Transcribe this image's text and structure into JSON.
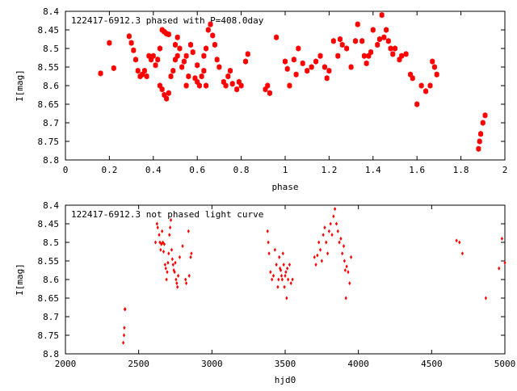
{
  "chart_data": [
    {
      "type": "scatter",
      "title": "122417-6912.3 phased with P=408.0day",
      "xlabel": "phase",
      "ylabel": "I[mag]",
      "xlim": [
        0,
        2
      ],
      "ylim": [
        8.4,
        8.8
      ],
      "y_inverted": true,
      "marker": "star",
      "color": "#ff0000",
      "xticks": [
        0,
        0.2,
        0.4,
        0.6,
        0.8,
        1,
        1.2,
        1.4,
        1.6,
        1.8,
        2
      ],
      "xtick_labels": [
        "0",
        "0.2",
        "0.4",
        "0.6",
        "0.8",
        "1",
        "1.2",
        "1.4",
        "1.6",
        "1.8",
        "2"
      ],
      "yticks": [
        8.4,
        8.45,
        8.5,
        8.55,
        8.6,
        8.65,
        8.7,
        8.75,
        8.8
      ],
      "ytick_labels": [
        "8.4",
        "8.45",
        "8.5",
        "8.55",
        "8.6",
        "8.65",
        "8.7",
        "8.75",
        "8.8"
      ],
      "points": [
        [
          0.16,
          8.567
        ],
        [
          0.2,
          8.485
        ],
        [
          0.22,
          8.553
        ],
        [
          0.29,
          8.467
        ],
        [
          0.3,
          8.485
        ],
        [
          0.31,
          8.505
        ],
        [
          0.32,
          8.53
        ],
        [
          0.33,
          8.56
        ],
        [
          0.34,
          8.575
        ],
        [
          0.35,
          8.57
        ],
        [
          0.36,
          8.56
        ],
        [
          0.37,
          8.575
        ],
        [
          0.38,
          8.52
        ],
        [
          0.39,
          8.53
        ],
        [
          0.4,
          8.52
        ],
        [
          0.41,
          8.545
        ],
        [
          0.42,
          8.53
        ],
        [
          0.43,
          8.5
        ],
        [
          0.44,
          8.45
        ],
        [
          0.45,
          8.455
        ],
        [
          0.46,
          8.46
        ],
        [
          0.47,
          8.462
        ],
        [
          0.43,
          8.6
        ],
        [
          0.44,
          8.61
        ],
        [
          0.45,
          8.625
        ],
        [
          0.46,
          8.635
        ],
        [
          0.47,
          8.62
        ],
        [
          0.48,
          8.575
        ],
        [
          0.49,
          8.56
        ],
        [
          0.5,
          8.53
        ],
        [
          0.51,
          8.52
        ],
        [
          0.5,
          8.49
        ],
        [
          0.51,
          8.47
        ],
        [
          0.52,
          8.5
        ],
        [
          0.53,
          8.55
        ],
        [
          0.54,
          8.535
        ],
        [
          0.55,
          8.52
        ],
        [
          0.55,
          8.6
        ],
        [
          0.56,
          8.575
        ],
        [
          0.57,
          8.49
        ],
        [
          0.58,
          8.51
        ],
        [
          0.59,
          8.58
        ],
        [
          0.6,
          8.59
        ],
        [
          0.61,
          8.6
        ],
        [
          0.6,
          8.545
        ],
        [
          0.62,
          8.575
        ],
        [
          0.63,
          8.56
        ],
        [
          0.64,
          8.6
        ],
        [
          0.63,
          8.52
        ],
        [
          0.64,
          8.5
        ],
        [
          0.65,
          8.45
        ],
        [
          0.66,
          8.435
        ],
        [
          0.67,
          8.465
        ],
        [
          0.68,
          8.49
        ],
        [
          0.69,
          8.53
        ],
        [
          0.7,
          8.55
        ],
        [
          0.72,
          8.59
        ],
        [
          0.73,
          8.6
        ],
        [
          0.74,
          8.575
        ],
        [
          0.75,
          8.56
        ],
        [
          0.76,
          8.595
        ],
        [
          0.78,
          8.61
        ],
        [
          0.79,
          8.59
        ],
        [
          0.8,
          8.6
        ],
        [
          0.82,
          8.535
        ],
        [
          0.83,
          8.515
        ],
        [
          0.91,
          8.61
        ],
        [
          0.92,
          8.6
        ],
        [
          0.93,
          8.62
        ],
        [
          0.96,
          8.47
        ],
        [
          1.0,
          8.535
        ],
        [
          1.01,
          8.555
        ],
        [
          1.02,
          8.6
        ],
        [
          1.04,
          8.53
        ],
        [
          1.05,
          8.57
        ],
        [
          1.06,
          8.5
        ],
        [
          1.08,
          8.54
        ],
        [
          1.1,
          8.56
        ],
        [
          1.12,
          8.55
        ],
        [
          1.14,
          8.535
        ],
        [
          1.16,
          8.52
        ],
        [
          1.18,
          8.55
        ],
        [
          1.19,
          8.58
        ],
        [
          1.2,
          8.56
        ],
        [
          1.22,
          8.48
        ],
        [
          1.24,
          8.52
        ],
        [
          1.25,
          8.475
        ],
        [
          1.26,
          8.49
        ],
        [
          1.28,
          8.5
        ],
        [
          1.3,
          8.55
        ],
        [
          1.32,
          8.48
        ],
        [
          1.33,
          8.435
        ],
        [
          1.35,
          8.48
        ],
        [
          1.36,
          8.52
        ],
        [
          1.37,
          8.54
        ],
        [
          1.38,
          8.52
        ],
        [
          1.39,
          8.51
        ],
        [
          1.4,
          8.45
        ],
        [
          1.42,
          8.49
        ],
        [
          1.43,
          8.475
        ],
        [
          1.44,
          8.41
        ],
        [
          1.45,
          8.47
        ],
        [
          1.46,
          8.45
        ],
        [
          1.47,
          8.48
        ],
        [
          1.48,
          8.5
        ],
        [
          1.49,
          8.515
        ],
        [
          1.5,
          8.5
        ],
        [
          1.52,
          8.53
        ],
        [
          1.53,
          8.52
        ],
        [
          1.55,
          8.515
        ],
        [
          1.57,
          8.57
        ],
        [
          1.58,
          8.58
        ],
        [
          1.6,
          8.65
        ],
        [
          1.62,
          8.6
        ],
        [
          1.64,
          8.615
        ],
        [
          1.66,
          8.6
        ],
        [
          1.67,
          8.535
        ],
        [
          1.68,
          8.55
        ],
        [
          1.69,
          8.57
        ],
        [
          1.88,
          8.77
        ],
        [
          1.885,
          8.75
        ],
        [
          1.89,
          8.73
        ],
        [
          1.9,
          8.7
        ],
        [
          1.91,
          8.68
        ]
      ]
    },
    {
      "type": "scatter",
      "title": "122417-6912.3 not phased light curve",
      "xlabel": "hjd0",
      "ylabel": "I[mag]",
      "xlim": [
        2000,
        5000
      ],
      "ylim": [
        8.4,
        8.8
      ],
      "y_inverted": true,
      "marker": "diamond",
      "color": "#ff0000",
      "xticks": [
        2000,
        2500,
        3000,
        3500,
        4000,
        4500,
        5000
      ],
      "xtick_labels": [
        "2000",
        "2500",
        "3000",
        "3500",
        "4000",
        "4500",
        "5000"
      ],
      "yticks": [
        8.4,
        8.45,
        8.5,
        8.55,
        8.6,
        8.65,
        8.7,
        8.75,
        8.8
      ],
      "ytick_labels": [
        "8.4",
        "8.45",
        "8.5",
        "8.55",
        "8.6",
        "8.65",
        "8.7",
        "8.75",
        "8.8"
      ],
      "points": [
        [
          2395,
          8.77
        ],
        [
          2400,
          8.75
        ],
        [
          2402,
          8.73
        ],
        [
          2405,
          8.68
        ],
        [
          2408,
          8.68
        ],
        [
          2615,
          8.5
        ],
        [
          2625,
          8.45
        ],
        [
          2630,
          8.46
        ],
        [
          2640,
          8.48
        ],
        [
          2645,
          8.5
        ],
        [
          2650,
          8.52
        ],
        [
          2655,
          8.505
        ],
        [
          2660,
          8.47
        ],
        [
          2665,
          8.5
        ],
        [
          2670,
          8.525
        ],
        [
          2675,
          8.505
        ],
        [
          2680,
          8.56
        ],
        [
          2685,
          8.57
        ],
        [
          2690,
          8.6
        ],
        [
          2695,
          8.58
        ],
        [
          2700,
          8.555
        ],
        [
          2705,
          8.53
        ],
        [
          2710,
          8.48
        ],
        [
          2715,
          8.46
        ],
        [
          2720,
          8.44
        ],
        [
          2725,
          8.52
        ],
        [
          2730,
          8.545
        ],
        [
          2735,
          8.56
        ],
        [
          2740,
          8.575
        ],
        [
          2745,
          8.58
        ],
        [
          2750,
          8.555
        ],
        [
          2755,
          8.6
        ],
        [
          2760,
          8.61
        ],
        [
          2765,
          8.62
        ],
        [
          2770,
          8.59
        ],
        [
          2780,
          8.54
        ],
        [
          2800,
          8.51
        ],
        [
          2820,
          8.6
        ],
        [
          2825,
          8.61
        ],
        [
          2840,
          8.47
        ],
        [
          2845,
          8.59
        ],
        [
          2855,
          8.54
        ],
        [
          2860,
          8.53
        ],
        [
          3380,
          8.47
        ],
        [
          3385,
          8.5
        ],
        [
          3390,
          8.53
        ],
        [
          3400,
          8.58
        ],
        [
          3410,
          8.6
        ],
        [
          3420,
          8.59
        ],
        [
          3430,
          8.52
        ],
        [
          3440,
          8.56
        ],
        [
          3450,
          8.62
        ],
        [
          3455,
          8.6
        ],
        [
          3460,
          8.54
        ],
        [
          3465,
          8.57
        ],
        [
          3470,
          8.575
        ],
        [
          3475,
          8.59
        ],
        [
          3480,
          8.6
        ],
        [
          3485,
          8.53
        ],
        [
          3490,
          8.56
        ],
        [
          3495,
          8.62
        ],
        [
          3500,
          8.59
        ],
        [
          3505,
          8.58
        ],
        [
          3510,
          8.65
        ],
        [
          3515,
          8.57
        ],
        [
          3520,
          8.6
        ],
        [
          3530,
          8.56
        ],
        [
          3540,
          8.61
        ],
        [
          3550,
          8.6
        ],
        [
          3700,
          8.54
        ],
        [
          3710,
          8.56
        ],
        [
          3720,
          8.535
        ],
        [
          3730,
          8.5
        ],
        [
          3740,
          8.52
        ],
        [
          3750,
          8.55
        ],
        [
          3760,
          8.48
        ],
        [
          3770,
          8.46
        ],
        [
          3780,
          8.5
        ],
        [
          3790,
          8.53
        ],
        [
          3800,
          8.47
        ],
        [
          3810,
          8.45
        ],
        [
          3820,
          8.48
        ],
        [
          3830,
          8.43
        ],
        [
          3840,
          8.41
        ],
        [
          3850,
          8.45
        ],
        [
          3860,
          8.47
        ],
        [
          3870,
          8.5
        ],
        [
          3880,
          8.49
        ],
        [
          3890,
          8.53
        ],
        [
          3900,
          8.51
        ],
        [
          3905,
          8.55
        ],
        [
          3910,
          8.575
        ],
        [
          3915,
          8.65
        ],
        [
          3920,
          8.565
        ],
        [
          3930,
          8.58
        ],
        [
          3940,
          8.61
        ],
        [
          3950,
          8.54
        ],
        [
          4670,
          8.495
        ],
        [
          4690,
          8.5
        ],
        [
          4710,
          8.53
        ],
        [
          4870,
          8.65
        ],
        [
          4960,
          8.57
        ],
        [
          4980,
          8.49
        ],
        [
          5000,
          8.555
        ]
      ]
    }
  ]
}
